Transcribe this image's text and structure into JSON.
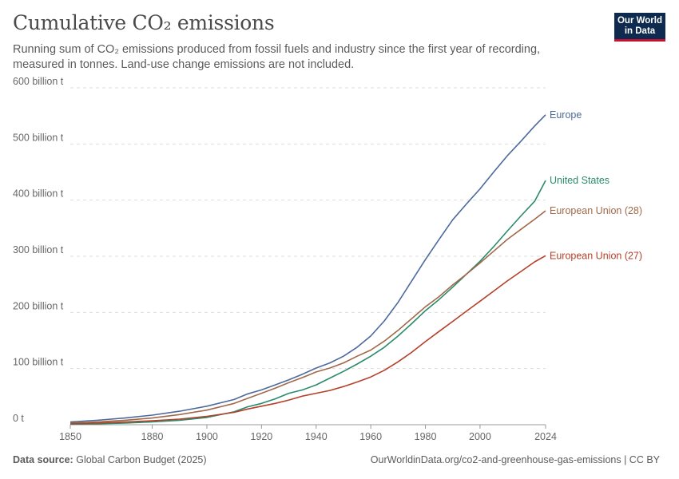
{
  "header": {
    "title": "Cumulative CO₂ emissions",
    "subtitle": "Running sum of CO₂ emissions produced from fossil fuels and industry since the first year of recording, measured in tonnes. Land-use change emissions are not included.",
    "logo_line1": "Our World",
    "logo_line2": "in Data"
  },
  "footer": {
    "source_label": "Data source:",
    "source_text": "Global Carbon Budget (2025)",
    "url_text": "OurWorldinData.org/co2-and-greenhouse-gas-emissions | CC BY"
  },
  "colors": {
    "logo_bg": "#0e2a4f",
    "logo_accent": "#c8102e"
  },
  "chart_data": {
    "type": "line",
    "xlim": [
      1850,
      2024
    ],
    "ylim": [
      0,
      600
    ],
    "x_ticks": [
      1850,
      1880,
      1900,
      1920,
      1940,
      1960,
      1980,
      2000,
      2024
    ],
    "y_ticks": [
      {
        "value": 0,
        "label": "0 t"
      },
      {
        "value": 100,
        "label": "100 billion t"
      },
      {
        "value": 200,
        "label": "200 billion t"
      },
      {
        "value": 300,
        "label": "300 billion t"
      },
      {
        "value": 400,
        "label": "400 billion t"
      },
      {
        "value": 500,
        "label": "500 billion t"
      },
      {
        "value": 600,
        "label": "600 billion t"
      }
    ],
    "grid": "horizontal dashed",
    "legend": "inline labels at line ends",
    "x": [
      1850,
      1860,
      1870,
      1880,
      1890,
      1900,
      1910,
      1915,
      1920,
      1925,
      1930,
      1935,
      1940,
      1945,
      1950,
      1955,
      1960,
      1965,
      1970,
      1975,
      1980,
      1985,
      1990,
      1995,
      2000,
      2005,
      2010,
      2015,
      2020,
      2024
    ],
    "series": [
      {
        "name": "Europe",
        "color": "#4c6a9c",
        "values": [
          5,
          8,
          12,
          17,
          24,
          33,
          45,
          55,
          62,
          71,
          80,
          90,
          101,
          110,
          122,
          138,
          158,
          185,
          218,
          256,
          294,
          330,
          365,
          393,
          420,
          450,
          479,
          505,
          532,
          552
        ]
      },
      {
        "name": "United States",
        "color": "#2a8a6c",
        "values": [
          1,
          1.5,
          3,
          5,
          8,
          13,
          23,
          32,
          38,
          46,
          56,
          62,
          71,
          83,
          95,
          108,
          122,
          138,
          158,
          180,
          203,
          223,
          245,
          268,
          291,
          317,
          345,
          372,
          398,
          435
        ]
      },
      {
        "name": "European Union (28)",
        "color": "#a0694a",
        "values": [
          3,
          5,
          8,
          12,
          18,
          26,
          38,
          47,
          56,
          65,
          75,
          84,
          94,
          101,
          110,
          122,
          133,
          149,
          168,
          189,
          210,
          228,
          249,
          268,
          288,
          309,
          330,
          348,
          366,
          381
        ]
      },
      {
        "name": "European Union (27)",
        "color": "#b5402a",
        "values": [
          2,
          3,
          5,
          7,
          10,
          15,
          22,
          28,
          33,
          38,
          44,
          51,
          56,
          61,
          68,
          76,
          85,
          97,
          112,
          129,
          148,
          166,
          184,
          202,
          220,
          238,
          256,
          273,
          290,
          301
        ]
      }
    ]
  }
}
